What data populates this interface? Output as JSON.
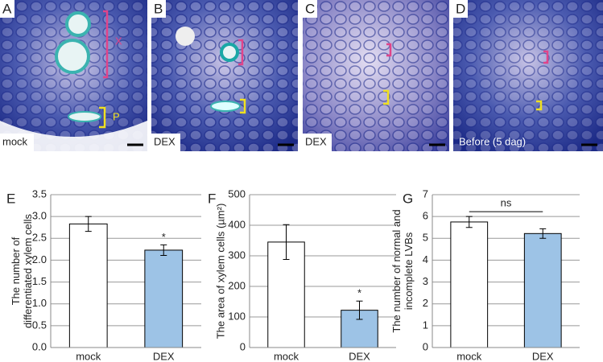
{
  "panels": [
    {
      "letter": "A",
      "caption": "mock",
      "marks": [
        "X",
        "P"
      ]
    },
    {
      "letter": "B",
      "caption": "DEX"
    },
    {
      "letter": "C",
      "caption": "DEX"
    },
    {
      "letter": "D",
      "caption": "Before (5 dag)"
    }
  ],
  "chart_data": [
    {
      "type": "bar",
      "panel": "E",
      "ylabel": [
        "The number of",
        "differentiated xylem cells"
      ],
      "categories": [
        "mock",
        "DEX"
      ],
      "values": [
        2.83,
        2.23
      ],
      "errors": [
        0.17,
        0.12
      ],
      "colors": [
        "#ffffff",
        "#9dc3e6"
      ],
      "annotation": "*",
      "ylim": [
        0,
        3.5
      ],
      "yticks": [
        {
          "value": 0,
          "label": "0.0"
        },
        {
          "value": 0.5,
          "label": "0.5"
        },
        {
          "value": 1,
          "label": "1.0"
        },
        {
          "value": 1.5,
          "label": "1.5"
        },
        {
          "value": 2,
          "label": "2.0"
        },
        {
          "value": 2.5,
          "label": "2.5"
        },
        {
          "value": 3,
          "label": "3.0"
        },
        {
          "value": 3.5,
          "label": "3.5"
        }
      ],
      "grid": true
    },
    {
      "type": "bar",
      "panel": "F",
      "ylabel": [
        "The area of xylem cells (µm²)"
      ],
      "categories": [
        "mock",
        "DEX"
      ],
      "values": [
        345,
        122
      ],
      "errors": [
        57,
        30
      ],
      "colors": [
        "#ffffff",
        "#9dc3e6"
      ],
      "annotation": "*",
      "ylim": [
        0,
        500
      ],
      "yticks": [
        0,
        100,
        200,
        300,
        400,
        500
      ],
      "grid": true
    },
    {
      "type": "bar",
      "panel": "G",
      "ylabel": [
        "The number of normal and",
        "incomplete LVBs"
      ],
      "categories": [
        "mock",
        "DEX"
      ],
      "values": [
        5.75,
        5.22
      ],
      "errors": [
        0.25,
        0.22
      ],
      "colors": [
        "#ffffff",
        "#9dc3e6"
      ],
      "comparison": "ns",
      "ylim": [
        0,
        7
      ],
      "yticks": [
        0,
        1,
        2,
        3,
        4,
        5,
        6,
        7
      ],
      "grid": true
    }
  ]
}
